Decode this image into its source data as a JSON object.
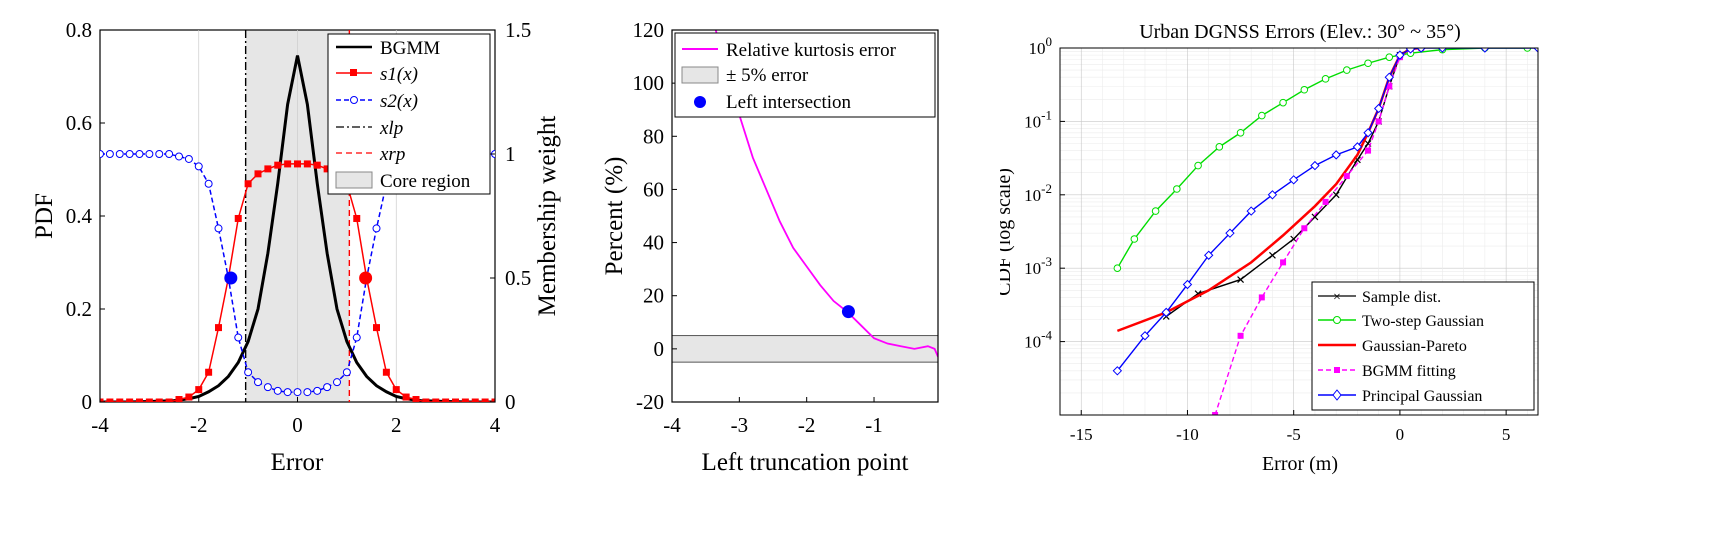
{
  "chart_data": [
    {
      "type": "line",
      "xlabel": "Error",
      "ylabel": "PDF",
      "ylabel_right": "Membership weight",
      "xlim": [
        -4,
        4
      ],
      "ylim": [
        0,
        0.8
      ],
      "ylim_right": [
        0,
        1.5
      ],
      "xticks": [
        "-4",
        "-2",
        "0",
        "2",
        "4"
      ],
      "yticks": [
        "0",
        "0.2",
        "0.4",
        "0.6",
        "0.8"
      ],
      "yticks_right": [
        "0",
        "0.5",
        "1",
        "1.5"
      ],
      "core_region": [
        -1.05,
        1.05
      ],
      "legend_position": "top-right",
      "legend": [
        "BGMM",
        "s1(x)",
        "s2(x)",
        "xlp",
        "xrp",
        "Core region"
      ],
      "series": [
        {
          "name": "BGMM",
          "axis": "left",
          "color": "#000000",
          "style": "solid",
          "x": [
            -4,
            -3.5,
            -3,
            -2.5,
            -2.2,
            -2,
            -1.8,
            -1.6,
            -1.4,
            -1.2,
            -1,
            -0.8,
            -0.6,
            -0.4,
            -0.2,
            0,
            0.2,
            0.4,
            0.6,
            0.8,
            1,
            1.2,
            1.4,
            1.6,
            1.8,
            2,
            2.2,
            2.5,
            3,
            3.5,
            4
          ],
          "y": [
            0,
            0,
            0.001,
            0.003,
            0.007,
            0.012,
            0.022,
            0.035,
            0.055,
            0.085,
            0.13,
            0.2,
            0.32,
            0.47,
            0.64,
            0.745,
            0.64,
            0.47,
            0.32,
            0.2,
            0.13,
            0.085,
            0.055,
            0.035,
            0.022,
            0.012,
            0.007,
            0.003,
            0.001,
            0,
            0
          ]
        },
        {
          "name": "s1(x)",
          "axis": "right",
          "color": "#ff0000",
          "style": "solid",
          "marker": "square",
          "x": [
            -4,
            -3.8,
            -3.6,
            -3.4,
            -3.2,
            -3,
            -2.8,
            -2.6,
            -2.4,
            -2.2,
            -2,
            -1.8,
            -1.6,
            -1.4,
            -1.2,
            -1,
            -0.8,
            -0.6,
            -0.4,
            -0.2,
            0,
            0.2,
            0.4,
            0.6,
            0.8,
            1,
            1.2,
            1.4,
            1.6,
            1.8,
            2,
            2.2,
            2.4,
            2.6,
            2.8,
            3,
            3.2,
            3.4,
            3.6,
            3.8,
            4
          ],
          "y": [
            0,
            0,
            0,
            0,
            0,
            0,
            0,
            0,
            0.01,
            0.02,
            0.05,
            0.12,
            0.3,
            0.5,
            0.74,
            0.88,
            0.92,
            0.94,
            0.955,
            0.96,
            0.96,
            0.96,
            0.955,
            0.94,
            0.92,
            0.88,
            0.74,
            0.5,
            0.3,
            0.12,
            0.05,
            0.02,
            0.01,
            0,
            0,
            0,
            0,
            0,
            0,
            0,
            0
          ]
        },
        {
          "name": "s2(x)",
          "axis": "right",
          "color": "#0000ff",
          "style": "dashed",
          "marker": "circle",
          "x": [
            -4,
            -3.8,
            -3.6,
            -3.4,
            -3.2,
            -3,
            -2.8,
            -2.6,
            -2.4,
            -2.2,
            -2,
            -1.8,
            -1.6,
            -1.4,
            -1.2,
            -1,
            -0.8,
            -0.6,
            -0.4,
            -0.2,
            0,
            0.2,
            0.4,
            0.6,
            0.8,
            1,
            1.2,
            1.4,
            1.6,
            1.8,
            2,
            2.2,
            2.4,
            2.6,
            2.8,
            3,
            3.2,
            3.4,
            3.6,
            3.8,
            4
          ],
          "y": [
            1,
            1,
            1,
            1,
            1,
            1,
            1,
            1,
            0.99,
            0.98,
            0.95,
            0.88,
            0.7,
            0.5,
            0.26,
            0.12,
            0.08,
            0.06,
            0.045,
            0.04,
            0.04,
            0.04,
            0.045,
            0.06,
            0.08,
            0.12,
            0.26,
            0.5,
            0.7,
            0.88,
            0.95,
            0.98,
            0.99,
            1,
            1,
            1,
            1,
            1,
            1,
            1,
            1
          ]
        }
      ],
      "vlines": [
        {
          "name": "xlp",
          "x": -1.05,
          "color": "#000000",
          "style": "dashdot"
        },
        {
          "name": "xrp",
          "x": 1.05,
          "color": "#ff0000",
          "style": "dashed"
        }
      ],
      "intersections": [
        {
          "x": -1.35,
          "y_right": 0.5,
          "color": "#0000ff"
        },
        {
          "x": 1.38,
          "y_right": 0.5,
          "color": "#ff0000"
        }
      ]
    },
    {
      "type": "line",
      "xlabel": "Left truncation point",
      "ylabel": "Percent (%)",
      "xlim": [
        -4,
        -0.05
      ],
      "ylim": [
        -20,
        120
      ],
      "xticks": [
        "-4",
        "-3",
        "-2",
        "-1"
      ],
      "yticks": [
        "-20",
        "0",
        "20",
        "40",
        "60",
        "80",
        "100",
        "120"
      ],
      "error_band": [
        -5,
        5
      ],
      "legend_position": "top-right",
      "legend": [
        "Relative kurtosis error",
        "± 5% error",
        "Left intersection"
      ],
      "series": [
        {
          "name": "Relative kurtosis error",
          "color": "#ff00ff",
          "style": "solid",
          "x": [
            -3.35,
            -3.2,
            -3.0,
            -2.8,
            -2.6,
            -2.4,
            -2.2,
            -2.0,
            -1.8,
            -1.6,
            -1.4,
            -1.2,
            -1.0,
            -0.8,
            -0.6,
            -0.4,
            -0.2,
            -0.1,
            -0.05
          ],
          "y": [
            120,
            105,
            88,
            72,
            60,
            48,
            38,
            31,
            24,
            18,
            14,
            9,
            4,
            2,
            1,
            0,
            1,
            0,
            -3
          ]
        }
      ],
      "left_intersection": {
        "x": -1.38,
        "y": 14,
        "color": "#0000ff"
      }
    },
    {
      "type": "line",
      "title": "Urban DGNSS Errors (Elev.: 30° ~ 35°)",
      "xlabel": "Error (m)",
      "ylabel": "CDF (log scale)",
      "yscale": "log",
      "xlim": [
        -16,
        6.5
      ],
      "ylim": [
        1e-05,
        1
      ],
      "xticks": [
        "-15",
        "-10",
        "-5",
        "0",
        "5"
      ],
      "yticks": [
        "10-4",
        "10-3",
        "10-2",
        "10-1",
        "100"
      ],
      "legend_position": "bottom-right",
      "legend": [
        "Sample dist.",
        "Two-step Gaussian",
        "Gaussian-Pareto",
        "BGMM fitting",
        "Principal Gaussian"
      ],
      "series": [
        {
          "name": "Sample dist.",
          "color": "#000000",
          "marker": "x",
          "x": [
            -11,
            -9.5,
            -7.5,
            -6,
            -5,
            -4,
            -3,
            -2,
            -1.5,
            -1,
            -0.5,
            0,
            0.5
          ],
          "y": [
            0.00022,
            0.00045,
            0.0007,
            0.0015,
            0.0025,
            0.005,
            0.01,
            0.03,
            0.05,
            0.1,
            0.3,
            0.8,
            1
          ]
        },
        {
          "name": "Two-step Gaussian",
          "color": "#00dd00",
          "marker": "circle",
          "x": [
            -13.3,
            -12.5,
            -11.5,
            -10.5,
            -9.5,
            -8.5,
            -7.5,
            -6.5,
            -5.5,
            -4.5,
            -3.5,
            -2.5,
            -1.5,
            -0.5,
            0.5,
            2,
            4,
            6
          ],
          "y": [
            0.001,
            0.0025,
            0.006,
            0.012,
            0.025,
            0.045,
            0.07,
            0.12,
            0.18,
            0.27,
            0.38,
            0.5,
            0.62,
            0.75,
            0.85,
            0.95,
            1,
            1
          ]
        },
        {
          "name": "Gaussian-Pareto",
          "color": "#ff0000",
          "style": "solid",
          "x": [
            -13.3,
            -11,
            -9,
            -7,
            -5.5,
            -4,
            -3,
            -2,
            -1.5,
            -1,
            -0.5,
            0,
            0.5,
            1
          ],
          "y": [
            0.00014,
            0.00025,
            0.0005,
            0.0012,
            0.0028,
            0.007,
            0.014,
            0.035,
            0.07,
            0.15,
            0.4,
            0.8,
            0.97,
            1
          ]
        },
        {
          "name": "BGMM fitting",
          "color": "#ff00ff",
          "style": "dashed",
          "marker": "square",
          "x": [
            -8.7,
            -7.5,
            -6.5,
            -5.5,
            -4.5,
            -3.5,
            -2.5,
            -1.5,
            -1,
            -0.5,
            0,
            0.5,
            1
          ],
          "y": [
            1e-05,
            0.00012,
            0.0004,
            0.0012,
            0.0035,
            0.008,
            0.018,
            0.04,
            0.1,
            0.3,
            0.75,
            0.97,
            1
          ]
        },
        {
          "name": "Principal Gaussian",
          "color": "#0000ff",
          "marker": "diamond",
          "x": [
            -13.3,
            -12,
            -11,
            -10,
            -9,
            -8,
            -7,
            -6,
            -5,
            -4,
            -3,
            -2,
            -1.5,
            -1,
            -0.5,
            0,
            0.5,
            1,
            2,
            4,
            6.5
          ],
          "y": [
            4e-05,
            0.00012,
            0.00025,
            0.0006,
            0.0015,
            0.003,
            0.006,
            0.01,
            0.016,
            0.025,
            0.035,
            0.045,
            0.07,
            0.15,
            0.4,
            0.8,
            0.97,
            1,
            1,
            1,
            1
          ]
        }
      ]
    }
  ]
}
